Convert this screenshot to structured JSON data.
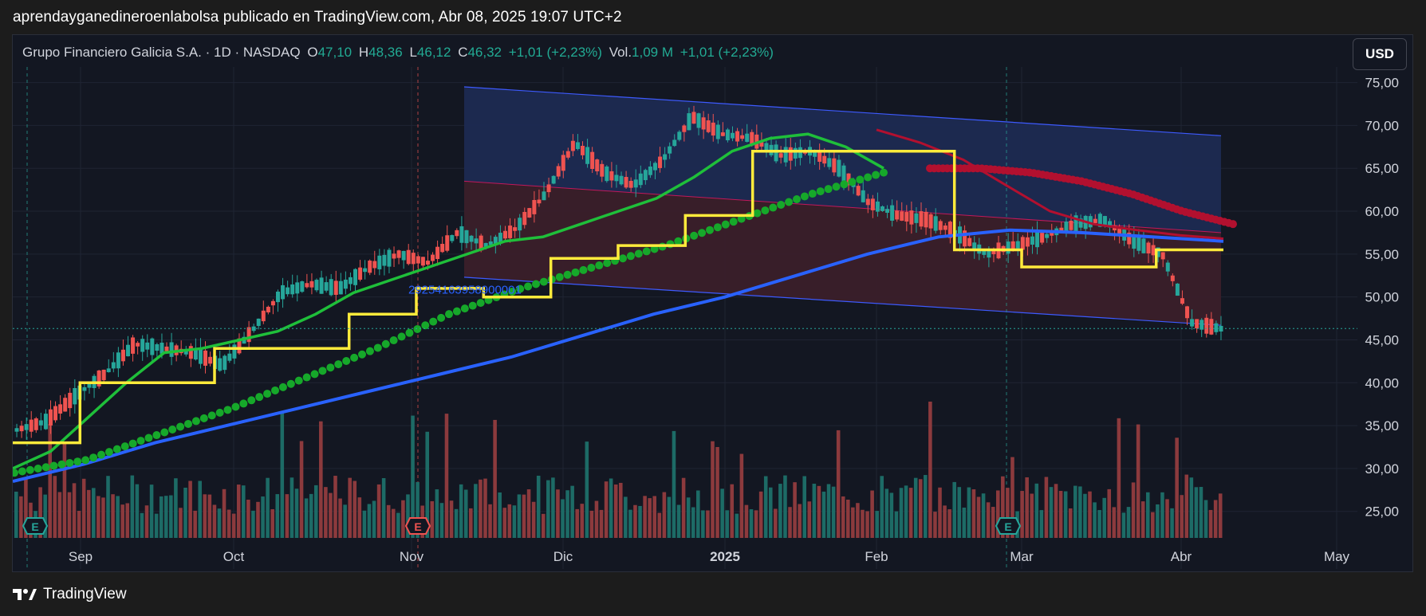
{
  "header": {
    "text": "aprendayganedineroenlabolsa publicado en TradingView.com, Abr 08, 2025 19:07 UTC+2"
  },
  "legend": {
    "symbol": "Grupo Financiero Galicia S.A. · 1D · NASDAQ",
    "o_label": "O",
    "o_value": "47,10",
    "h_label": "H",
    "h_value": "48,36",
    "l_label": "L",
    "l_value": "46,12",
    "c_label": "C",
    "c_value": "46,32",
    "change": "+1,01 (+2,23%)",
    "vol_label": "Vol.",
    "vol_value": "1,09 M",
    "vol_change": "+1,01 (+2,23%)"
  },
  "currency_button": "USD",
  "channel_label": "29254163958900001",
  "earnings_marker": "E",
  "footer": {
    "brand": "TradingView"
  },
  "colors": {
    "up": "#26a69a",
    "down": "#ef5350",
    "volume_up": "#1d6b66",
    "volume_down": "#8c3a3d",
    "ma_fast": "#1fbf3a",
    "ma_dots": "#16a82a",
    "ma_slow": "#2962ff",
    "stepline": "#ffeb3b",
    "ma_red": "#b2102f",
    "channel_upper": "#1c2a52",
    "channel_lower": "#3a1f2a"
  },
  "chart_data": {
    "type": "candlestick",
    "title": "Grupo Financiero Galicia S.A. · 1D · NASDAQ",
    "x_axis_labels": [
      "Sep",
      "Oct",
      "Nov",
      "Dic",
      "2025",
      "Feb",
      "Mar",
      "Abr",
      "May"
    ],
    "y_axis_labels": [
      "75,00",
      "70,00",
      "65,00",
      "60,00",
      "55,00",
      "50,00",
      "45,00",
      "40,00",
      "35,00",
      "30,00",
      "25,00"
    ],
    "ylim": [
      22,
      76
    ],
    "last_price": 46.32,
    "closes_weekly": [
      34.5,
      35.5,
      38.5,
      41,
      44.5,
      44,
      43.5,
      42,
      46,
      50.5,
      51.5,
      51,
      53.5,
      55,
      54,
      57.5,
      56,
      58,
      62,
      68,
      64.5,
      63,
      66,
      71,
      69,
      68.5,
      66.5,
      67,
      65,
      61,
      59.5,
      59,
      57.5,
      55,
      56,
      57,
      58.5,
      59,
      56.5,
      55,
      47,
      46.3
    ],
    "series": [
      {
        "name": "MA fast",
        "values": [
          30,
          32,
          36,
          40,
          43.5,
          44,
          45,
          46,
          48,
          50.5,
          52,
          53.5,
          55,
          56.5,
          57,
          58.5,
          60,
          61.5,
          64,
          67,
          68.5,
          69,
          67.5,
          65
        ]
      },
      {
        "name": "MA slow",
        "values": [
          28.5,
          30.5,
          33,
          35,
          37,
          39,
          41,
          43,
          45.5,
          48,
          50,
          52.5,
          55,
          57,
          57.8,
          57.5,
          57,
          56.5
        ]
      },
      {
        "name": "MA dots",
        "values": [
          29.5,
          31,
          34,
          37,
          40.5,
          44,
          48,
          51,
          53.5,
          56,
          59,
          62,
          64.5
        ]
      },
      {
        "name": "Stepline",
        "values": [
          33,
          40,
          40,
          44,
          44,
          48,
          51,
          50,
          54.5,
          56,
          59.5,
          67,
          67,
          67,
          55.5,
          53.5,
          53.5,
          55.5
        ]
      },
      {
        "name": "MA red",
        "values": [
          65,
          65,
          64.5,
          63.5,
          62,
          60,
          58.5
        ]
      }
    ]
  }
}
